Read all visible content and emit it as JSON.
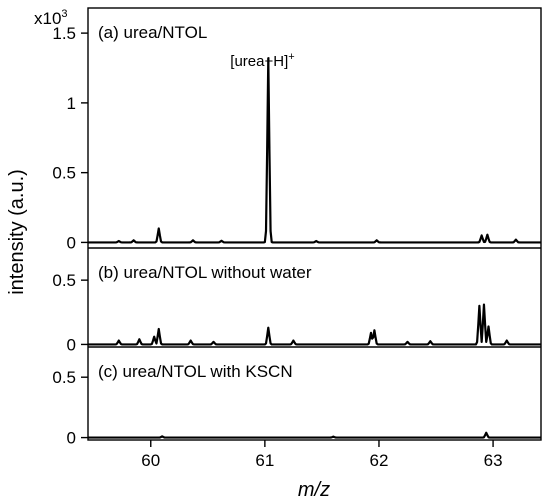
{
  "chart_data": {
    "type": "line",
    "xlabel": "m/z",
    "ylabel": "intensity (a.u.)",
    "y_multiplier": "x10",
    "y_multiplier_exp": "3",
    "xlim": [
      59.45,
      63.42
    ],
    "x_ticks": [
      60,
      61,
      62,
      63
    ],
    "x_tick_labels": [
      "60",
      "61",
      "62",
      "63"
    ],
    "panels": [
      {
        "label": "(a) urea/NTOL",
        "ylim": [
          -0.04,
          1.68
        ],
        "y_ticks": [
          0,
          0.5,
          1,
          1.5
        ],
        "y_tick_labels": [
          "0",
          "0.5",
          "1",
          "1.5"
        ],
        "annotation": {
          "text": "[urea+H]",
          "superscript": "+",
          "x": 61.03
        },
        "peaks": [
          {
            "x": 59.72,
            "y": 0.01
          },
          {
            "x": 59.85,
            "y": 0.015
          },
          {
            "x": 60.07,
            "y": 0.1
          },
          {
            "x": 60.37,
            "y": 0.015
          },
          {
            "x": 60.62,
            "y": 0.012
          },
          {
            "x": 61.03,
            "y": 1.32
          },
          {
            "x": 61.45,
            "y": 0.01
          },
          {
            "x": 61.98,
            "y": 0.015
          },
          {
            "x": 62.9,
            "y": 0.05
          },
          {
            "x": 62.95,
            "y": 0.055
          },
          {
            "x": 63.2,
            "y": 0.02
          }
        ]
      },
      {
        "label": "(b) urea/NTOL without water",
        "ylim": [
          -0.02,
          0.75
        ],
        "y_ticks": [
          0,
          0.5
        ],
        "y_tick_labels": [
          "0",
          "0.5"
        ],
        "peaks": [
          {
            "x": 59.72,
            "y": 0.03
          },
          {
            "x": 59.9,
            "y": 0.04
          },
          {
            "x": 60.03,
            "y": 0.06
          },
          {
            "x": 60.07,
            "y": 0.12
          },
          {
            "x": 60.35,
            "y": 0.03
          },
          {
            "x": 60.55,
            "y": 0.02
          },
          {
            "x": 61.03,
            "y": 0.13
          },
          {
            "x": 61.25,
            "y": 0.03
          },
          {
            "x": 61.93,
            "y": 0.09
          },
          {
            "x": 61.96,
            "y": 0.11
          },
          {
            "x": 62.25,
            "y": 0.02
          },
          {
            "x": 62.45,
            "y": 0.025
          },
          {
            "x": 62.88,
            "y": 0.3
          },
          {
            "x": 62.92,
            "y": 0.31
          },
          {
            "x": 62.96,
            "y": 0.14
          },
          {
            "x": 63.12,
            "y": 0.03
          }
        ]
      },
      {
        "label": "(c) urea/NTOL with KSCN",
        "ylim": [
          -0.02,
          0.75
        ],
        "y_ticks": [
          0,
          0.5
        ],
        "y_tick_labels": [
          "0",
          "0.5"
        ],
        "peaks": [
          {
            "x": 60.1,
            "y": 0.01
          },
          {
            "x": 61.6,
            "y": 0.008
          },
          {
            "x": 62.94,
            "y": 0.04
          }
        ]
      }
    ]
  }
}
